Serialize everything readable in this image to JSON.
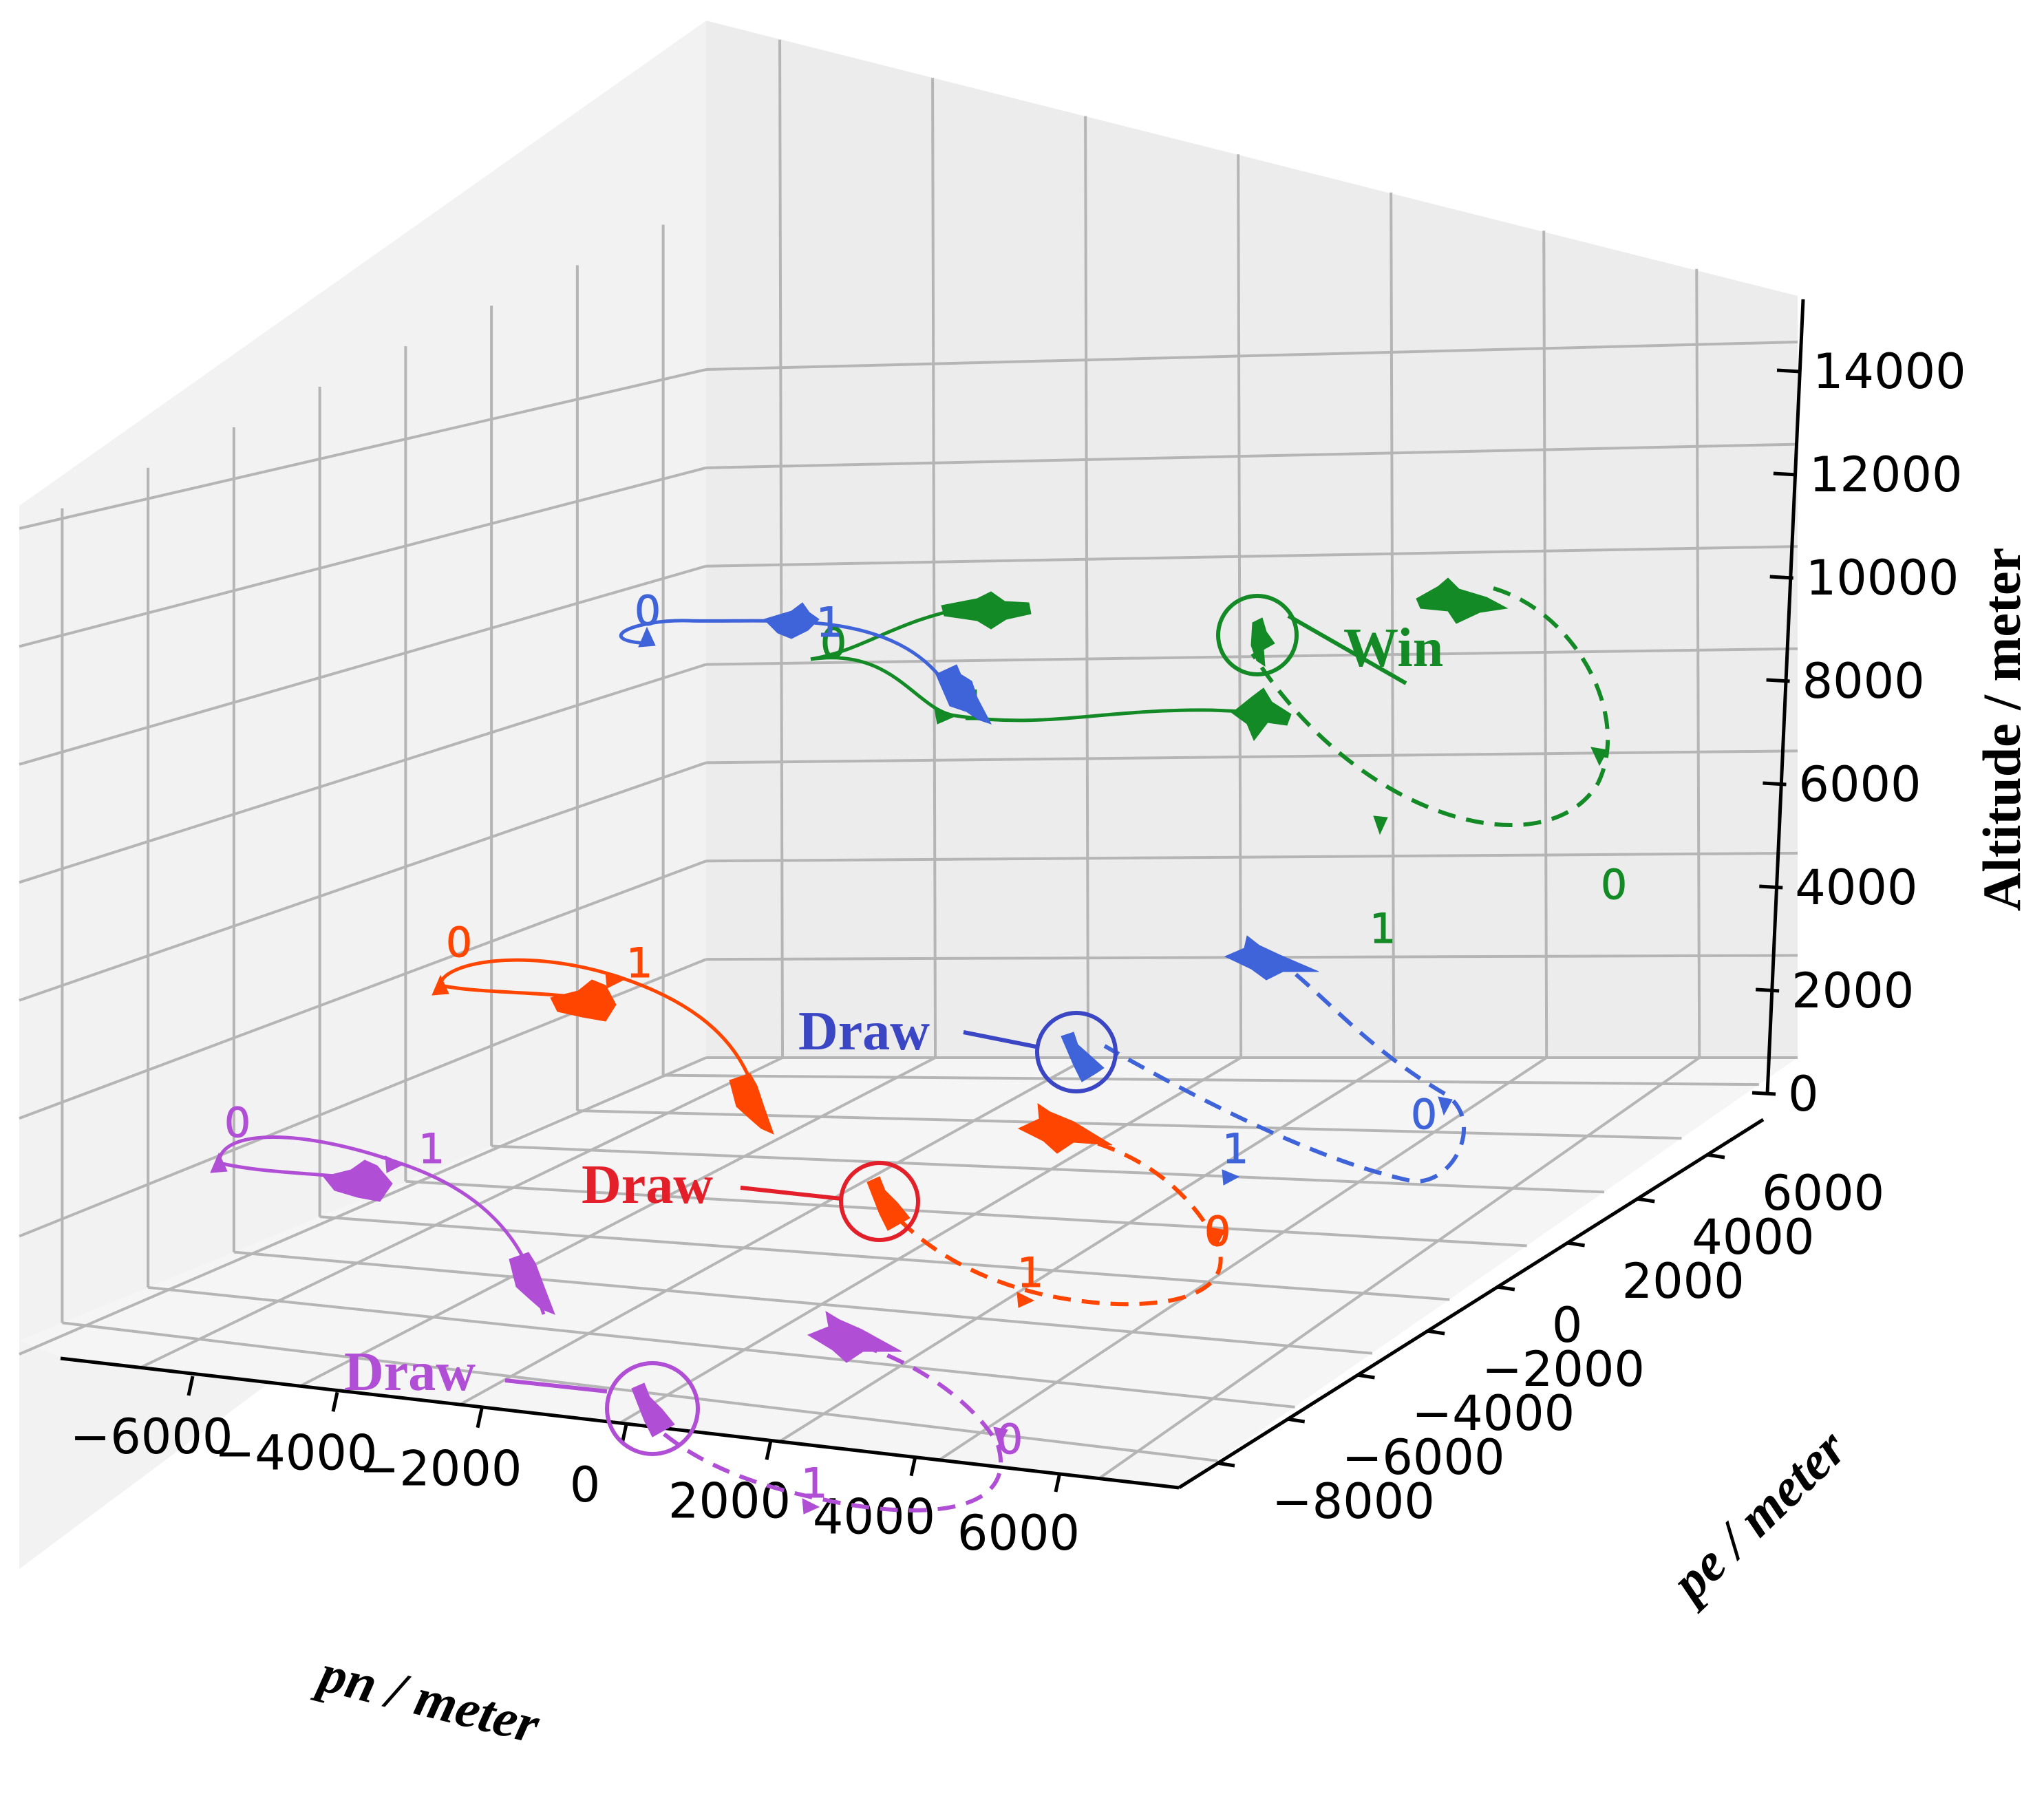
{
  "chart_data": {
    "type": "line",
    "xlabel": "pn / meter",
    "ylabel": "pe / meter",
    "zlabel": "Altitude / meter",
    "x_ticks": [
      "−6000",
      "−4000",
      "−2000",
      "0",
      "2000",
      "4000",
      "6000"
    ],
    "y_ticks": [
      "−8000",
      "−6000",
      "−4000",
      "−2000",
      "0",
      "2000",
      "4000",
      "6000"
    ],
    "z_ticks": [
      "0",
      "2000",
      "4000",
      "6000",
      "8000",
      "10000",
      "12000",
      "14000"
    ],
    "grid": true,
    "engagements": [
      {
        "color": "#138a25",
        "outcome": "Win",
        "tick_marks": [
          "0",
          "1",
          "1",
          "0"
        ]
      },
      {
        "color": "#3f63d8",
        "outcome": "Draw",
        "tick_marks": [
          "0",
          "1",
          "1",
          "0"
        ]
      },
      {
        "color": "#ff4500",
        "outcome": "Draw",
        "tick_marks": [
          "0",
          "1",
          "1",
          "0"
        ]
      },
      {
        "color": "#b04fd6",
        "outcome": "Draw",
        "tick_marks": [
          "0",
          "1",
          "1",
          "0"
        ]
      }
    ],
    "annotation_colors": [
      "#138a25",
      "#3a46c4",
      "#e3202a",
      "#b04fd6"
    ]
  }
}
